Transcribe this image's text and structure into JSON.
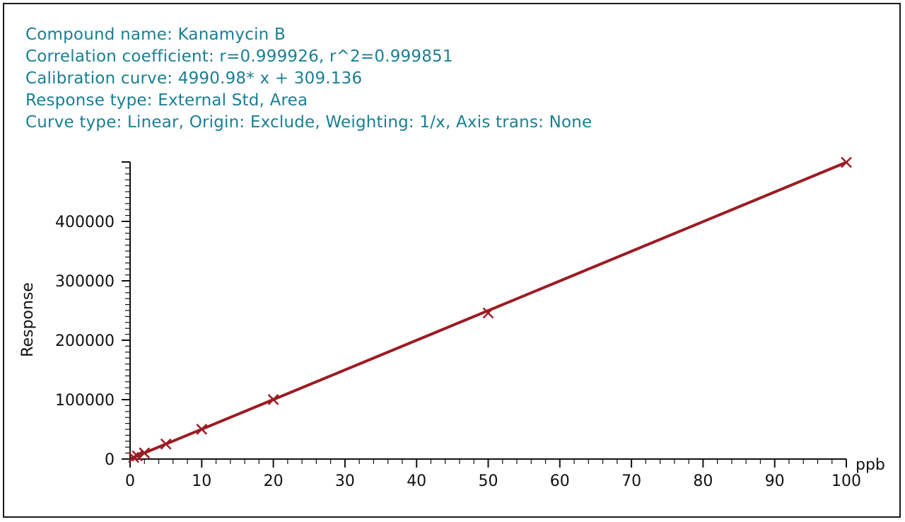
{
  "info": {
    "compound": "Compound name: Kanamycin B",
    "correlation": "Correlation coefficient: r=0.999926, r^2=0.999851",
    "curve": "Calibration curve: 4990.98* x + 309.136",
    "response_type": "Response type: External Std, Area",
    "curve_type": "Curve type: Linear, Origin: Exclude, Weighting: 1/x, Axis trans: None"
  },
  "colors": {
    "text": "#1a7f93",
    "series": "#9b1c22",
    "axis": "#111111"
  },
  "chart_data": {
    "type": "scatter",
    "xlabel": "ppb",
    "ylabel": "Response",
    "xlim": [
      0,
      100
    ],
    "ylim": [
      0,
      500000
    ],
    "x_ticks": [
      0,
      10,
      20,
      30,
      40,
      50,
      60,
      70,
      80,
      90,
      100
    ],
    "y_ticks": [
      0,
      100000,
      200000,
      300000,
      400000
    ],
    "y_tick_labels": [
      "0",
      "100000",
      "200000",
      "300000",
      "400000"
    ],
    "x_tick_labels": [
      "0",
      "10",
      "20",
      "30",
      "40",
      "50",
      "60",
      "70",
      "80",
      "90",
      "100"
    ],
    "series": [
      {
        "x": [
          0.5,
          1,
          2,
          5,
          10,
          20,
          50,
          100
        ],
        "y": [
          2800,
          5300,
          10300,
          25300,
          50200,
          100100,
          245800,
          499400
        ]
      }
    ],
    "fit_line": {
      "slope": 4990.98,
      "intercept": 309.136,
      "x_range": [
        0.2,
        100
      ]
    },
    "grid": false
  }
}
